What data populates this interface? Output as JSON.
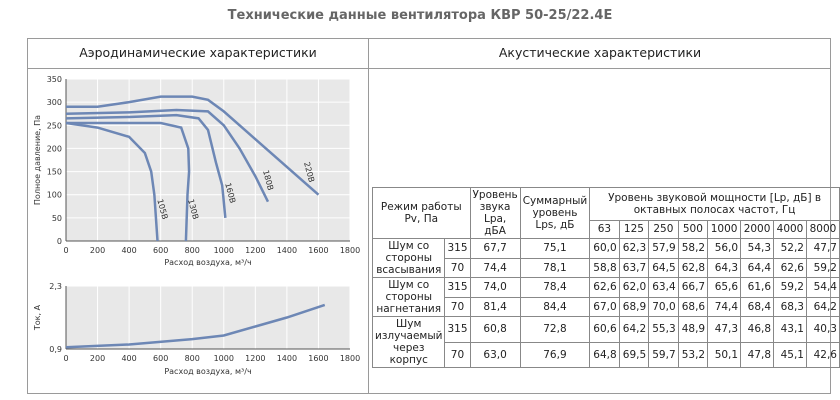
{
  "header": {
    "title": "Технические данные вентилятора КВР 50-25/22.4E"
  },
  "panels": {
    "aero": "Аэродинамические характеристики",
    "acoustic": "Акустические характеристики"
  },
  "chart_data": [
    {
      "type": "line",
      "ylabel": "Полное давление, Па",
      "xlabel": "Расход воздуха, м³/ч",
      "xlim": [
        0,
        1800
      ],
      "ylim": [
        0,
        350
      ],
      "xticks": [
        0,
        200,
        400,
        600,
        800,
        1000,
        1200,
        1400,
        1600,
        1800
      ],
      "yticks": [
        0,
        50,
        100,
        150,
        200,
        250,
        300,
        350
      ],
      "grid": true,
      "series": [
        {
          "name": "105В",
          "color": "#6d87b5",
          "x": [
            0,
            200,
            400,
            500,
            540,
            560,
            580
          ],
          "values": [
            255,
            245,
            225,
            190,
            150,
            100,
            0
          ]
        },
        {
          "name": "130В",
          "color": "#6d87b5",
          "x": [
            0,
            300,
            600,
            730,
            775,
            780,
            770,
            760
          ],
          "values": [
            255,
            255,
            255,
            245,
            200,
            150,
            100,
            0
          ]
        },
        {
          "name": "160В",
          "color": "#6d87b5",
          "x": [
            0,
            400,
            700,
            840,
            900,
            950,
            990,
            1010
          ],
          "values": [
            265,
            268,
            272,
            265,
            240,
            170,
            120,
            50
          ]
        },
        {
          "name": "180В",
          "color": "#6d87b5",
          "x": [
            0,
            400,
            700,
            900,
            1000,
            1100,
            1200,
            1280
          ],
          "values": [
            275,
            278,
            283,
            280,
            250,
            200,
            140,
            85
          ]
        },
        {
          "name": "220В",
          "color": "#6d87b5",
          "x": [
            0,
            200,
            400,
            600,
            800,
            900,
            1000,
            1200,
            1400,
            1600
          ],
          "values": [
            290,
            290,
            300,
            312,
            312,
            305,
            280,
            220,
            160,
            100
          ]
        }
      ]
    },
    {
      "type": "line",
      "ylabel": "Ток, А",
      "xlabel": "Расход воздуха, м³/ч",
      "xlim": [
        0,
        1800
      ],
      "ylim": [
        0.9,
        2.3
      ],
      "xticks": [
        0,
        200,
        400,
        600,
        800,
        1000,
        1200,
        1400,
        1600,
        1800
      ],
      "yticks": [
        {
          "value": 0.9,
          "label": "0,9"
        },
        {
          "value": 2.3,
          "label": "2,3"
        }
      ],
      "grid": true,
      "series": [
        {
          "color": "#6d87b5",
          "x": [
            0,
            400,
            800,
            1000,
            1200,
            1400,
            1640
          ],
          "values": [
            0.94,
            1.0,
            1.12,
            1.2,
            1.4,
            1.6,
            1.88
          ]
        }
      ]
    }
  ],
  "table": {
    "head": [
      "Режим работы Pv, Па",
      "Уровень звука Lpa, дБА",
      "Суммарный уровень Lps, дБ",
      "Уровень звуковой мощности [Lp, дБ] в октавных полосах частот, Гц"
    ],
    "freqs": [
      "63",
      "125",
      "250",
      "500",
      "1000",
      "2000",
      "4000",
      "8000"
    ],
    "groups": [
      {
        "label": "Шум со стороны всасывания",
        "rows": [
          [
            "315",
            "67,7",
            "75,1",
            "60,0",
            "62,3",
            "57,9",
            "58,2",
            "56,0",
            "54,3",
            "52,2",
            "47,7"
          ],
          [
            "70",
            "74,4",
            "78,1",
            "58,8",
            "63,7",
            "64,5",
            "62,8",
            "64,3",
            "64,4",
            "62,6",
            "59,2"
          ]
        ]
      },
      {
        "label": "Шум со стороны нагнетания",
        "rows": [
          [
            "315",
            "74,0",
            "78,4",
            "62,6",
            "62,0",
            "63,4",
            "66,7",
            "65,6",
            "61,6",
            "59,2",
            "54,4"
          ],
          [
            "70",
            "81,4",
            "84,4",
            "67,0",
            "68,9",
            "70,0",
            "68,6",
            "74,4",
            "68,4",
            "68,3",
            "64,2"
          ]
        ]
      },
      {
        "label": "Шум излучаемый через корпус",
        "rows": [
          [
            "315",
            "60,8",
            "72,8",
            "60,6",
            "64,2",
            "55,3",
            "48,9",
            "47,3",
            "46,8",
            "43,1",
            "40,3"
          ],
          [
            "70",
            "63,0",
            "76,9",
            "64,8",
            "69,5",
            "59,7",
            "53,2",
            "50,1",
            "47,8",
            "45,1",
            "42,6"
          ]
        ]
      }
    ]
  }
}
